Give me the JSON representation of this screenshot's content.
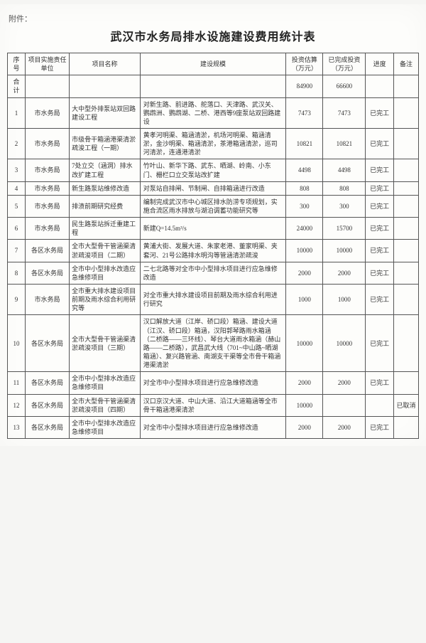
{
  "attachment_label": "附件：",
  "title": "武汉市水务局排水设施建设费用统计表",
  "headers": {
    "seq": "序号",
    "unit": "项目实施责任单位",
    "name": "项目名称",
    "scale": "建设规模",
    "invest": "投资估算（万元）",
    "done": "已完成投资（万元）",
    "progress": "进度",
    "note": "备注"
  },
  "total_row": {
    "seq": "合计",
    "invest": "84900",
    "done": "66600"
  },
  "rows": [
    {
      "seq": "1",
      "unit": "市水务局",
      "name": "大中型外排泵站双回路建设工程",
      "scale": "对新生路、前进路、舵落口、天津路、武汉关、鹦鹉洲、鹦鹉湖、二桥、港西等9座泵站双回路建设",
      "invest": "7473",
      "done": "7473",
      "progress": "已完工",
      "note": ""
    },
    {
      "seq": "2",
      "unit": "市水务局",
      "name": "市级骨干箱涵港渠清淤疏浚工程（一期）",
      "scale": "黄孝河明渠、箱涵清淤，机场河明渠、箱涵清淤，金沙明渠、箱涵清淤，茶港箱涵清淤，巡司河清淤，连通港清淤",
      "invest": "10821",
      "done": "10821",
      "progress": "已完工",
      "note": ""
    },
    {
      "seq": "3",
      "unit": "市水务局",
      "name": "7处立交（涵洞）排水改扩建工程",
      "scale": "竹叶山、新华下路、武东、晒湖、岭南、小东门、栅栏口立交泵站改扩建",
      "invest": "4498",
      "done": "4498",
      "progress": "已完工",
      "note": ""
    },
    {
      "seq": "4",
      "unit": "市水务局",
      "name": "新生路泵站维修改造",
      "scale": "对泵站自排闸、节制闸、自排箱涵进行改造",
      "invest": "808",
      "done": "808",
      "progress": "已完工",
      "note": ""
    },
    {
      "seq": "5",
      "unit": "市水务局",
      "name": "排渍前期研究经费",
      "scale": "编制完成武汉市中心城区排水防涝专项规划，实施合流区雨水排放与湖泊调蓄功能研究等",
      "invest": "300",
      "done": "300",
      "progress": "已完工",
      "note": ""
    },
    {
      "seq": "6",
      "unit": "市水务局",
      "name": "民生路泵站拆迁重建工程",
      "scale": "新建Q=14.5m³/s",
      "invest": "24000",
      "done": "15700",
      "progress": "已完工",
      "note": ""
    },
    {
      "seq": "7",
      "unit": "各区水务局",
      "name": "全市大型骨干管涵渠清淤疏浚项目（二期）",
      "scale": "黄浦大街、发展大道、朱家老港、董家明渠、夹套河、21号公路排水明沟等管涵清淤疏浚",
      "invest": "10000",
      "done": "10000",
      "progress": "已完工",
      "note": ""
    },
    {
      "seq": "8",
      "unit": "各区水务局",
      "name": "全市中小型排水改造应急维修项目",
      "scale": "二七北路等对全市中小型排水项目进行应急维修改造",
      "invest": "2000",
      "done": "2000",
      "progress": "已完工",
      "note": ""
    },
    {
      "seq": "9",
      "unit": "市水务局",
      "name": "全市重大排水建设项目前期及雨水综合利用研究等",
      "scale": "对全市重大排水建设项目前期及雨水综合利用进行研究",
      "invest": "1000",
      "done": "1000",
      "progress": "已完工",
      "note": ""
    },
    {
      "seq": "10",
      "unit": "各区水务局",
      "name": "全市大型骨干管涵渠清淤疏浚项目（三期）",
      "scale": "汉口解放大道（江岸、硚口段）箱涵、建设大道（江汉、硚口段）箱涵，汉阳郭琴路雨水箱涵（二桥路——三环线）、琴台大道雨水箱涵（赫山路——二桥路），武昌武大线（701~中山路~晒湖箱涵）、复兴路管涵、南湖支干渠等全市骨干箱涵港渠清淤",
      "invest": "10000",
      "done": "10000",
      "progress": "已完工",
      "note": ""
    },
    {
      "seq": "11",
      "unit": "各区水务局",
      "name": "全市中小型排水改造应急维修项目",
      "scale": "对全市中小型排水项目进行应急维修改造",
      "invest": "2000",
      "done": "2000",
      "progress": "已完工",
      "note": ""
    },
    {
      "seq": "12",
      "unit": "各区水务局",
      "name": "全市大型骨干管涵渠清淤疏浚项目（四期）",
      "scale": "汉口京汉大道、中山大道、沿江大道箱涵等全市骨干箱涵港渠清淤",
      "invest": "10000",
      "done": "",
      "progress": "",
      "note": "已取消"
    },
    {
      "seq": "13",
      "unit": "各区水务局",
      "name": "全市中小型排水改造应急维修项目",
      "scale": "对全市中小型排水项目进行应急维修改造",
      "invest": "2000",
      "done": "2000",
      "progress": "已完工",
      "note": ""
    }
  ]
}
